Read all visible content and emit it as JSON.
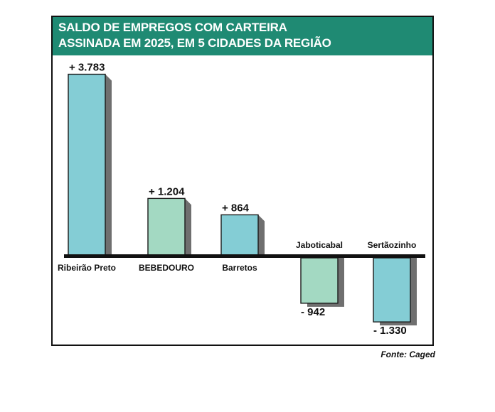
{
  "title_line1": "SALDO DE EMPREGOS COM CARTEIRA",
  "title_line2": "ASSINADA EM 2025, EM 5 CIDADES DA REGIÃO",
  "source": "Fonte: Caged",
  "colors": {
    "header": "#1f8a73",
    "bar_blue": "#84cdd5",
    "bar_green": "#a3d9c2",
    "shadow": "#6f6f6f",
    "axis": "#111111"
  },
  "chart_data": {
    "type": "bar",
    "categories": [
      "Ribeirão Preto",
      "BEBEDOURO",
      "Barretos",
      "Jaboticabal",
      "Sertãozinho"
    ],
    "values": [
      3783,
      1204,
      864,
      -942,
      -1330
    ],
    "value_labels": [
      "+ 3.783",
      "+ 1.204",
      "+ 864",
      "- 942",
      "- 1.330"
    ],
    "bar_colors": [
      "#84cdd5",
      "#a3d9c2",
      "#84cdd5",
      "#a3d9c2",
      "#84cdd5"
    ],
    "title": "SALDO DE EMPREGOS COM CARTEIRA ASSINADA EM 2025, EM 5 CIDADES DA REGIÃO",
    "xlabel": "",
    "ylabel": "",
    "grid": false,
    "legend": "none"
  }
}
